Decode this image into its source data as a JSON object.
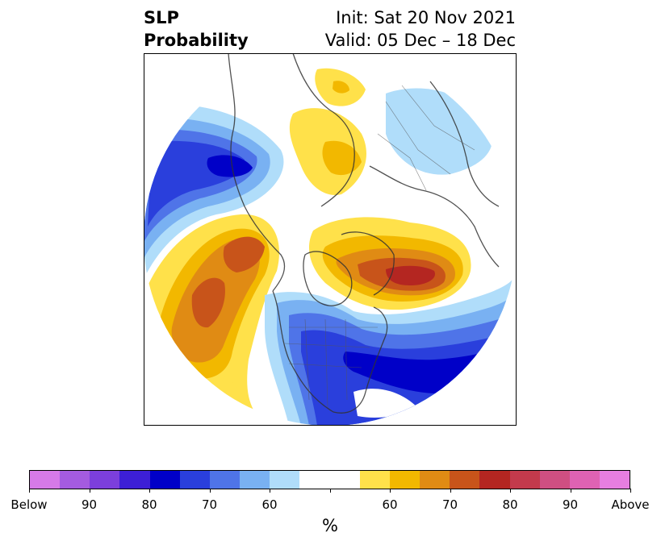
{
  "title": {
    "line1": "SLP",
    "line2": "Probability"
  },
  "init": "Init: Sat 20 Nov 2021",
  "valid": "Valid: 05 Dec – 18 Dec",
  "colorbar": {
    "unit": "%",
    "colors": [
      "#d67ae8",
      "#a45be0",
      "#7c3fdc",
      "#3d1fd6",
      "#0000c8",
      "#2a3fdc",
      "#4f74e8",
      "#79b1f2",
      "#b0ddfa",
      "#ffffff",
      "#ffffff",
      "#ffe14a",
      "#f2b800",
      "#e08b14",
      "#c8541a",
      "#b42621",
      "#c33a4c",
      "#cf4f82",
      "#de62b3",
      "#e77ee0"
    ],
    "labels": [
      "Below",
      "90",
      "80",
      "70",
      "60",
      "60",
      "70",
      "80",
      "90",
      "Above"
    ]
  },
  "map": {
    "projection": "north-polar-stereographic",
    "below_color": "#0000c8",
    "above_color": "#b42621"
  }
}
